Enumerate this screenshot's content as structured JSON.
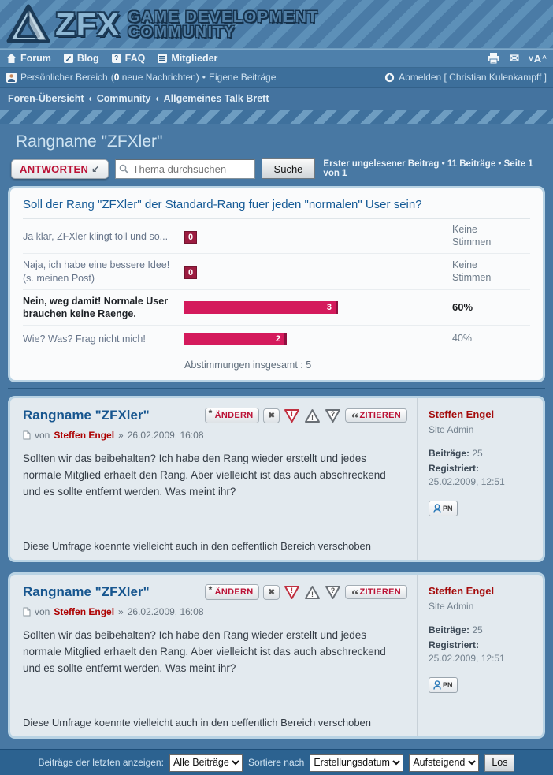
{
  "header": {
    "logo": "ZFX",
    "tagline1": "Game Development",
    "tagline2": "Community"
  },
  "nav": {
    "forum": "Forum",
    "blog": "Blog",
    "faq": "FAQ",
    "members": "Mitglieder",
    "faq_glyph": "?",
    "font_down": "v",
    "font_letter": "A",
    "font_up": "^",
    "envelope_glyph": "✉"
  },
  "userbar": {
    "personal": "Persönlicher Bereich",
    "msg_open": "(",
    "msg_count": "0",
    "msg_close": " neue Nachrichten)",
    "sep": "•",
    "own_posts": "Eigene Beiträge",
    "logout": "Abmelden [ Christian Kulenkampff ]"
  },
  "breadcrumb": {
    "items": [
      "Foren-Übersicht",
      "Community",
      "Allgemeines Talk Brett"
    ],
    "sep": "‹"
  },
  "page": {
    "title": "Rangname \"ZFXler\""
  },
  "toolbar": {
    "reply": "ANTWORTEN",
    "reply_arrow": "↙",
    "search_placeholder": "Thema durchsuchen",
    "search_btn": "Suche",
    "status": "Erster ungelesener Beitrag • 11 Beiträge • Seite 1 von 1"
  },
  "poll": {
    "question": "Soll der Rang \"ZFXler\" der Standard-Rang fuer jeden \"normalen\" User sein?",
    "options": [
      {
        "label": "Ja klar, ZFXler klingt toll und so...",
        "votes": "0",
        "pct": 0,
        "result_a": "Keine",
        "result_b": "Stimmen"
      },
      {
        "label": "Naja, ich habe eine bessere Idee! (s. meinen Post)",
        "votes": "0",
        "pct": 0,
        "result_a": "Keine",
        "result_b": "Stimmen"
      },
      {
        "label": "Nein, weg damit! Normale User brauchen keine Raenge.",
        "votes": "3",
        "pct": 60,
        "result": "60%"
      },
      {
        "label": "Wie? Was? Frag nicht mich!",
        "votes": "2",
        "pct": 40,
        "result": "40%"
      }
    ],
    "total": "Abstimmungen insgesamt : 5"
  },
  "icons": {
    "star": "*",
    "x": "✖",
    "warn": "!",
    "question": "?",
    "quote": "“"
  },
  "posts": [
    {
      "title": "Rangname \"ZFXler\"",
      "actions": {
        "edit": "ÄNDERN",
        "quote": "ZITIEREN"
      },
      "byline": {
        "von": "von",
        "author": "Steffen Engel",
        "sep": "»",
        "date": "26.02.2009, 16:08"
      },
      "body": "Sollten wir das beibehalten? Ich habe den Rang wieder erstellt und jedes normale Mitglied erhaelt den Rang. Aber vielleicht ist das auch abschreckend und es sollte entfernt werden. Was meint ihr?",
      "note": "Diese Umfrage koennte vielleicht auch in den oeffentlich Bereich verschoben",
      "profile": {
        "name": "Steffen Engel",
        "rank": "Site Admin",
        "posts_label": "Beiträge:",
        "posts": "25",
        "reg_label": "Registriert:",
        "reg": "25.02.2009, 12:51",
        "pn": "PN"
      }
    },
    {
      "title": "Rangname \"ZFXler\"",
      "actions": {
        "edit": "ÄNDERN",
        "quote": "ZITIEREN"
      },
      "byline": {
        "von": "von",
        "author": "Steffen Engel",
        "sep": "»",
        "date": "26.02.2009, 16:08"
      },
      "body": "Sollten wir das beibehalten? Ich habe den Rang wieder erstellt und jedes normale Mitglied erhaelt den Rang. Aber vielleicht ist das auch abschreckend und es sollte entfernt werden. Was meint ihr?",
      "note": "Diese Umfrage koennte vielleicht auch in den oeffentlich Bereich verschoben",
      "profile": {
        "name": "Steffen Engel",
        "rank": "Site Admin",
        "posts_label": "Beiträge:",
        "posts": "25",
        "reg_label": "Registriert:",
        "reg": "25.02.2009, 12:51",
        "pn": "PN"
      }
    }
  ],
  "footer": {
    "show_label": "Beiträge der letzten anzeigen:",
    "show_value": "Alle Beiträge",
    "sort_label": "Sortiere nach",
    "sort_value": "Erstellungsdatum",
    "dir_value": "Aufsteigend",
    "go": "Los"
  }
}
